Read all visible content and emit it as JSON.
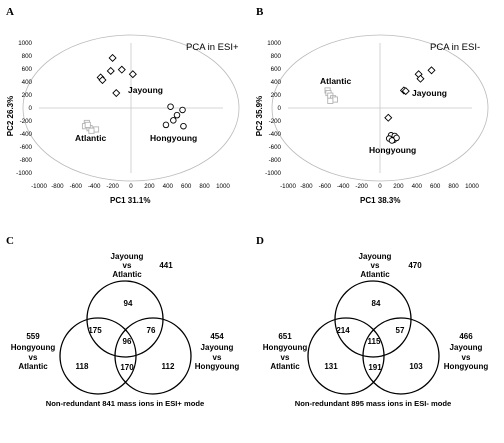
{
  "panels": {
    "a": "A",
    "b": "B",
    "c": "C",
    "d": "D"
  },
  "chart_data": [
    {
      "type": "scatter",
      "title": "PCA in ESI+",
      "xlabel": "PC1 31.1%",
      "ylabel": "PC2 26.3%",
      "xlim": [
        -1000,
        1000
      ],
      "ylim": [
        -1000,
        1000
      ],
      "xticks": [
        "-1000",
        "-800",
        "-600",
        "-400",
        "-200",
        "0",
        "200",
        "400",
        "600",
        "800",
        "1000"
      ],
      "yticks": [
        "1000",
        "800",
        "600",
        "400",
        "200",
        "0",
        "-200",
        "-400",
        "-600",
        "-800",
        "-1000"
      ],
      "groups": [
        {
          "name": "Jayoung",
          "marker": "diamond",
          "points": [
            [
              -200,
              770
            ],
            [
              -330,
              470
            ],
            [
              -220,
              570
            ],
            [
              -100,
              590
            ],
            [
              20,
              520
            ],
            [
              -160,
              230
            ],
            [
              -310,
              430
            ]
          ]
        },
        {
          "name": "Atlantic",
          "marker": "square",
          "points": [
            [
              -480,
              -230
            ],
            [
              -500,
              -280
            ],
            [
              -450,
              -310
            ],
            [
              -380,
              -330
            ],
            [
              -430,
              -350
            ],
            [
              -470,
              -260
            ]
          ]
        },
        {
          "name": "Hongyoung",
          "marker": "circle",
          "points": [
            [
              430,
              20
            ],
            [
              560,
              -30
            ],
            [
              500,
              -110
            ],
            [
              460,
              -190
            ],
            [
              570,
              -280
            ],
            [
              380,
              -260
            ]
          ]
        }
      ],
      "labels": {
        "Jayoung": "Jayoung",
        "Atlantic": "Atlantic",
        "Hongyoung": "Hongyoung"
      }
    },
    {
      "type": "scatter",
      "title": "PCA in ESI-",
      "xlabel": "PC1 38.3%",
      "ylabel": "PC2 35.9%",
      "xlim": [
        -1000,
        1000
      ],
      "ylim": [
        -1000,
        1000
      ],
      "xticks": [
        "-1000",
        "-800",
        "-600",
        "-400",
        "-200",
        "0",
        "200",
        "400",
        "600",
        "800",
        "1000"
      ],
      "yticks": [
        "1000",
        "800",
        "600",
        "400",
        "200",
        "0",
        "-200",
        "-400",
        "-600",
        "-800",
        "-1000"
      ],
      "groups": [
        {
          "name": "Jayoung",
          "marker": "diamond",
          "points": [
            [
              560,
              580
            ],
            [
              420,
              520
            ],
            [
              440,
              450
            ],
            [
              260,
              270
            ],
            [
              280,
              260
            ]
          ]
        },
        {
          "name": "Atlantic",
          "marker": "square",
          "points": [
            [
              -570,
              270
            ],
            [
              -560,
              230
            ],
            [
              -540,
              190
            ],
            [
              -510,
              150
            ],
            [
              -490,
              130
            ],
            [
              -540,
              110
            ]
          ]
        },
        {
          "name": "Hongyoung",
          "marker": "circle",
          "points": [
            [
              120,
              -420
            ],
            [
              160,
              -430
            ],
            [
              100,
              -470
            ],
            [
              150,
              -490
            ],
            [
              180,
              -460
            ],
            [
              130,
              -500
            ]
          ]
        },
        {
          "name": "",
          "marker": "diamond",
          "points": [
            [
              90,
              -150
            ]
          ]
        }
      ],
      "labels": {
        "Jayoung": "Jayoung",
        "Atlantic": "Atlantic",
        "Hongyoung": "Hongyoung"
      }
    },
    {
      "type": "venn",
      "sets": {
        "top": {
          "lines": [
            "Jayoung",
            "vs",
            "Atlantic"
          ],
          "total": "441"
        },
        "left": {
          "lines": [
            "Hongyoung",
            "vs",
            "Atlantic"
          ],
          "total": "559"
        },
        "right": {
          "lines": [
            "Jayoung",
            "vs",
            "Hongyoung"
          ],
          "total": "454"
        }
      },
      "regions": {
        "top_only": "94",
        "top_left": "175",
        "top_right": "76",
        "all": "96",
        "left_only": "118",
        "left_right": "170",
        "right_only": "112"
      },
      "caption": "Non-redundant 841 mass ions in ESI+ mode"
    },
    {
      "type": "venn",
      "sets": {
        "top": {
          "lines": [
            "Jayoung",
            "vs",
            "Atlantic"
          ],
          "total": "470"
        },
        "left": {
          "lines": [
            "Hongyoung",
            "vs",
            "Atlantic"
          ],
          "total": "651"
        },
        "right": {
          "lines": [
            "Jayoung",
            "vs",
            "Hongyoung"
          ],
          "total": "466"
        }
      },
      "regions": {
        "top_only": "84",
        "top_left": "214",
        "top_right": "57",
        "all": "115",
        "left_only": "131",
        "left_right": "191",
        "right_only": "103"
      },
      "caption": "Non-redundant 895 mass ions in ESI- mode"
    }
  ]
}
